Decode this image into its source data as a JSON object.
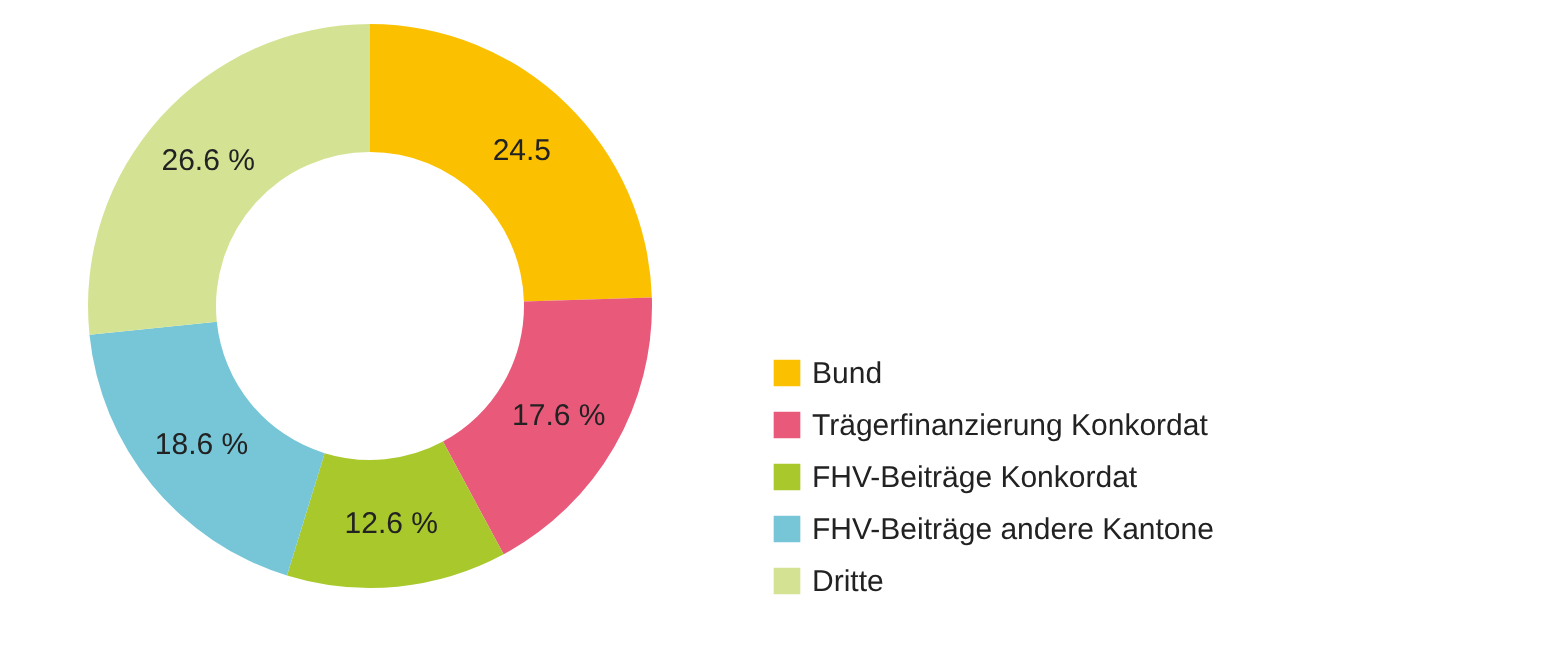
{
  "chart_data": {
    "type": "donut",
    "categories": [
      "Bund",
      "Trägerfinanzierung Konkordat",
      "FHV-Beiträge Konkordat",
      "FHV-Beiträge andere Kantone",
      "Dritte"
    ],
    "values": [
      24.5,
      17.6,
      12.6,
      18.6,
      26.6
    ],
    "value_labels": [
      "24.5",
      "17.6 %",
      "12.6 %",
      "18.6 %",
      "26.6 %"
    ],
    "colors": [
      "#fbc100",
      "#e95a7a",
      "#a8c82c",
      "#76c6d8",
      "#d4e393"
    ],
    "legend": "right"
  }
}
